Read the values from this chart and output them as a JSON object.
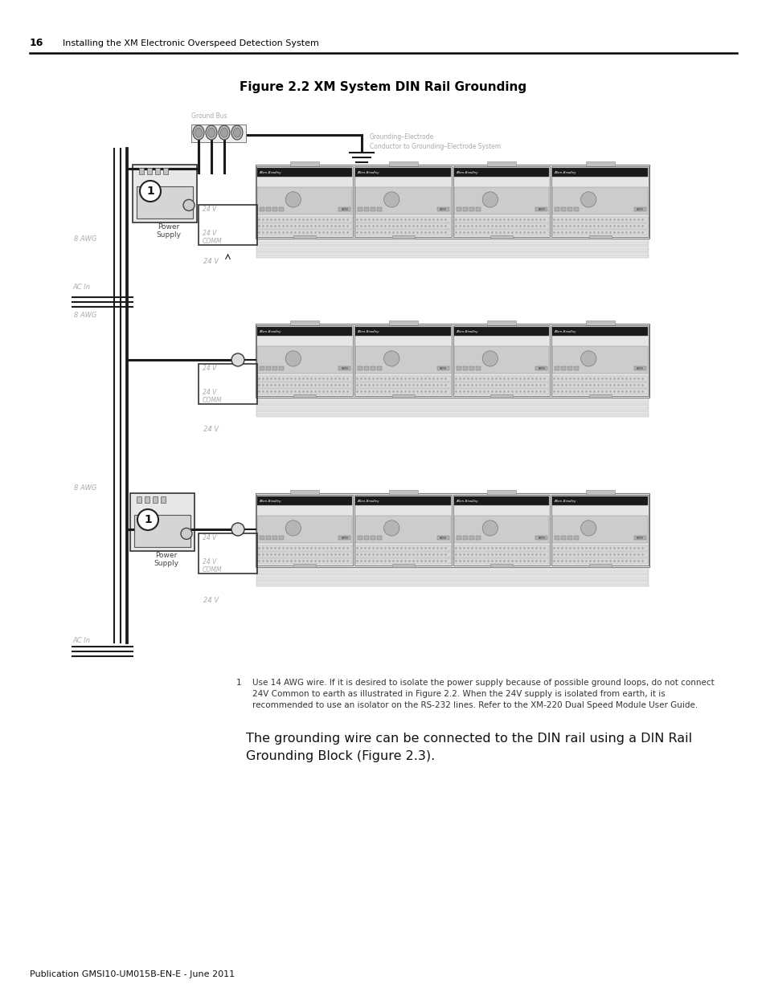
{
  "page_bg": "#ffffff",
  "page_number": "16",
  "header_text": "Installing the XM Electronic Overspeed Detection System",
  "figure_title": "Figure 2.2 XM System DIN Rail Grounding",
  "footer_text": "Publication GMSI10-UM015B-EN-E - June 2011",
  "body_text_large": "The grounding wire can be connected to the DIN rail using a DIN Rail\nGrounding Block (Figure 2.3).",
  "footnote_num": "1",
  "footnote_body": "Use 14 AWG wire. If it is desired to isolate the power supply because of possible ground loops, do not connect\n24V Common to earth as illustrated in Figure 2.2. When the 24V supply is isolated from earth, it is\nrecommended to use an isolator on the RS-232 lines. Refer to the XM-220 Dual Speed Module User Guide.",
  "line_color": "#000000",
  "gray_label": "#aaaaaa",
  "dark_gray": "#555555",
  "module_fill": "#ececec",
  "module_fill2": "#f5f5f5",
  "module_border": "#888888",
  "wire_color": "#1a1a1a",
  "din_rail_fill": "#d8d8d8",
  "terminal_fill": "#c8c8c8",
  "ps_fill": "#e0e0e0"
}
